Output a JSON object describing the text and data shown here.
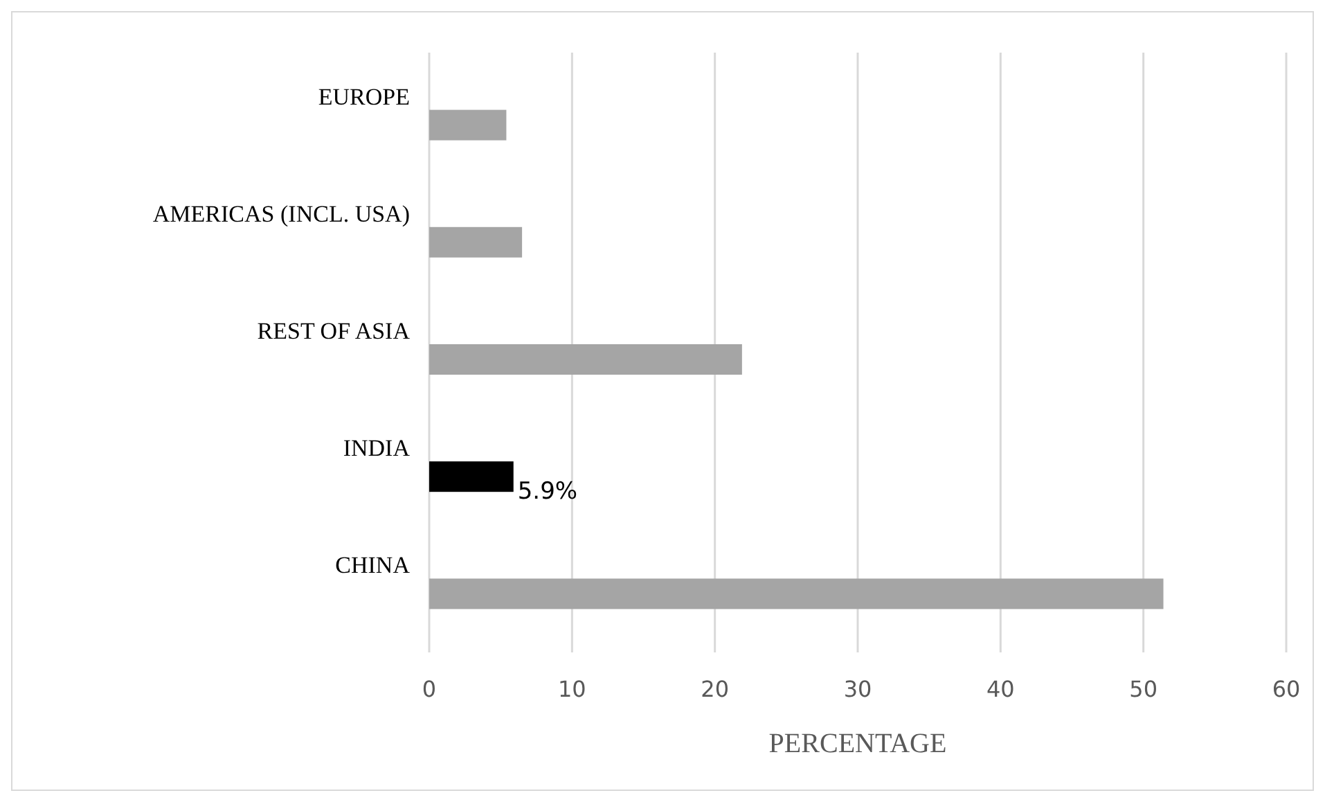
{
  "chart_data": {
    "type": "bar",
    "orientation": "horizontal",
    "xlabel": "PERCENTAGE",
    "categories": [
      "EUROPE",
      "AMERICAS (INCL. USA)",
      "REST OF ASIA",
      "INDIA",
      "CHINA"
    ],
    "values": [
      5.4,
      6.5,
      21.9,
      5.9,
      51.4
    ],
    "colors": [
      "#a5a5a5",
      "#a5a5a5",
      "#a5a5a5",
      "#000000",
      "#a5a5a5"
    ],
    "value_labels": [
      null,
      null,
      null,
      "5.9%",
      null
    ],
    "xlim": [
      0,
      60
    ],
    "xticks": [
      0,
      10,
      20,
      30,
      40,
      50,
      60
    ],
    "grid": "x"
  }
}
